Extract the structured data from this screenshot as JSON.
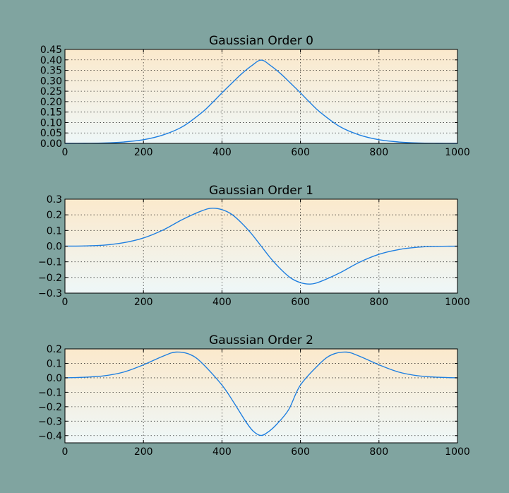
{
  "colors": {
    "figure_background": "#80a4a0",
    "plot_background_top": "#fbe9cc",
    "plot_background_bottom": "#eef7f8",
    "line": "#1f7fe0"
  },
  "chart_data": [
    {
      "type": "line",
      "title": "Gaussian Order 0",
      "xlabel": "",
      "ylabel": "",
      "xlim": [
        0,
        1000
      ],
      "ylim": [
        0.0,
        0.45
      ],
      "xticks": [
        0,
        200,
        400,
        600,
        800,
        1000
      ],
      "xtick_labels": [
        "0",
        "200",
        "400",
        "600",
        "800",
        "1000"
      ],
      "yticks": [
        0.0,
        0.05,
        0.1,
        0.15,
        0.2,
        0.25,
        0.3,
        0.35,
        0.4,
        0.45
      ],
      "ytick_labels": [
        "0.00",
        "0.05",
        "0.10",
        "0.15",
        "0.20",
        "0.25",
        "0.30",
        "0.35",
        "0.40",
        "0.45"
      ],
      "grid": true,
      "series": [
        {
          "x": [
            0,
            50,
            100,
            150,
            200,
            250,
            300,
            350,
            375,
            400,
            425,
            450,
            475,
            500,
            525,
            550,
            575,
            600,
            625,
            650,
            700,
            750,
            800,
            850,
            900,
            950,
            1000
          ],
          "values": [
            0.0,
            0.0004,
            0.0018,
            0.0067,
            0.0175,
            0.0404,
            0.0807,
            0.1496,
            0.194,
            0.242,
            0.288,
            0.333,
            0.371,
            0.399,
            0.371,
            0.333,
            0.288,
            0.242,
            0.194,
            0.1496,
            0.0807,
            0.0404,
            0.0175,
            0.0067,
            0.0018,
            0.0004,
            0.0
          ]
        }
      ]
    },
    {
      "type": "line",
      "title": "Gaussian Order 1",
      "xlabel": "",
      "ylabel": "",
      "xlim": [
        0,
        1000
      ],
      "ylim": [
        -0.3,
        0.3
      ],
      "xticks": [
        0,
        200,
        400,
        600,
        800,
        1000
      ],
      "xtick_labels": [
        "0",
        "200",
        "400",
        "600",
        "800",
        "1000"
      ],
      "yticks": [
        -0.3,
        -0.2,
        -0.1,
        0.0,
        0.1,
        0.2,
        0.3
      ],
      "ytick_labels": [
        "−0.3",
        "−0.2",
        "−0.1",
        "0.0",
        "0.1",
        "0.2",
        "0.3"
      ],
      "grid": true,
      "series": [
        {
          "x": [
            0,
            50,
            100,
            150,
            200,
            250,
            300,
            350,
            375,
            400,
            425,
            450,
            475,
            500,
            525,
            550,
            575,
            600,
            625,
            650,
            700,
            750,
            800,
            850,
            900,
            950,
            1000
          ],
          "values": [
            0.0,
            0.0016,
            0.0066,
            0.022,
            0.052,
            0.103,
            0.171,
            0.227,
            0.242,
            0.233,
            0.203,
            0.148,
            0.08,
            0.0,
            -0.08,
            -0.148,
            -0.203,
            -0.233,
            -0.242,
            -0.227,
            -0.171,
            -0.103,
            -0.052,
            -0.022,
            -0.0066,
            -0.0016,
            0.0
          ]
        }
      ]
    },
    {
      "type": "line",
      "title": "Gaussian Order 2",
      "xlabel": "",
      "ylabel": "",
      "xlim": [
        0,
        1000
      ],
      "ylim": [
        -0.45,
        0.2
      ],
      "xticks": [
        0,
        200,
        400,
        600,
        800,
        1000
      ],
      "xtick_labels": [
        "0",
        "200",
        "400",
        "600",
        "800",
        "1000"
      ],
      "yticks": [
        -0.4,
        -0.3,
        -0.2,
        -0.1,
        0.0,
        0.1,
        0.2
      ],
      "ytick_labels": [
        "−0.4",
        "−0.3",
        "−0.2",
        "−0.1",
        "0.0",
        "0.1",
        "0.2"
      ],
      "grid": true,
      "series": [
        {
          "x": [
            0,
            50,
            100,
            150,
            200,
            250,
            283,
            320,
            350,
            400,
            430,
            460,
            480,
            500,
            520,
            540,
            570,
            600,
            650,
            680,
            717,
            750,
            800,
            850,
            900,
            950,
            1000
          ],
          "values": [
            0.0,
            0.004,
            0.014,
            0.04,
            0.09,
            0.15,
            0.178,
            0.16,
            0.1,
            -0.05,
            -0.17,
            -0.3,
            -0.37,
            -0.399,
            -0.37,
            -0.32,
            -0.22,
            -0.05,
            0.1,
            0.16,
            0.178,
            0.15,
            0.09,
            0.04,
            0.014,
            0.004,
            0.0
          ]
        }
      ]
    }
  ]
}
